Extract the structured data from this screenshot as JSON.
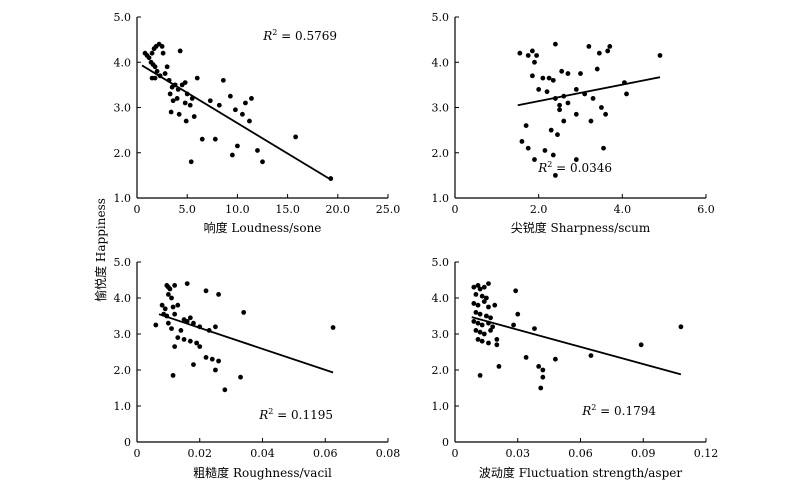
{
  "shared_ylabel": "愉悦度 Happiness",
  "chart_data": [
    {
      "type": "scatter",
      "xlabel": "响度 Loudness/sone",
      "xlim": [
        0,
        25
      ],
      "ylim": [
        1.0,
        5.0
      ],
      "xticks": [
        "0",
        "5.0",
        "10.0",
        "15.0",
        "20.0",
        "25.0"
      ],
      "xtick_values": [
        0,
        5,
        10,
        15,
        20,
        25
      ],
      "yticks": [
        "1.0",
        "2.0",
        "3.0",
        "4.0",
        "5.0"
      ],
      "ytick_values": [
        1,
        2,
        3,
        4,
        5
      ],
      "r2_symbol": "R",
      "r2_sup": "2",
      "r2_text": " = 0.5769",
      "r2_position": "top-right",
      "trendline": {
        "x": [
          0.5,
          19.2
        ],
        "y": [
          3.93,
          1.42
        ]
      },
      "points": [
        [
          0.8,
          4.2
        ],
        [
          1.0,
          4.15
        ],
        [
          1.2,
          4.1
        ],
        [
          1.5,
          4.2
        ],
        [
          1.7,
          4.3
        ],
        [
          1.9,
          4.35
        ],
        [
          2.2,
          4.4
        ],
        [
          2.5,
          4.35
        ],
        [
          2.6,
          4.2
        ],
        [
          1.4,
          4.0
        ],
        [
          1.6,
          3.95
        ],
        [
          1.8,
          3.9
        ],
        [
          2.0,
          3.8
        ],
        [
          1.5,
          3.65
        ],
        [
          1.8,
          3.65
        ],
        [
          2.3,
          3.7
        ],
        [
          2.8,
          3.75
        ],
        [
          3.0,
          3.9
        ],
        [
          3.2,
          3.6
        ],
        [
          3.5,
          3.45
        ],
        [
          3.8,
          3.5
        ],
        [
          4.1,
          3.4
        ],
        [
          4.5,
          3.5
        ],
        [
          4.8,
          3.55
        ],
        [
          3.3,
          3.3
        ],
        [
          3.6,
          3.15
        ],
        [
          4.0,
          3.2
        ],
        [
          4.3,
          4.25
        ],
        [
          5.0,
          3.3
        ],
        [
          5.5,
          3.2
        ],
        [
          6.0,
          3.65
        ],
        [
          4.8,
          3.1
        ],
        [
          5.3,
          3.05
        ],
        [
          3.4,
          2.9
        ],
        [
          4.2,
          2.85
        ],
        [
          4.9,
          2.7
        ],
        [
          5.7,
          2.8
        ],
        [
          5.4,
          1.8
        ],
        [
          6.5,
          2.3
        ],
        [
          7.3,
          3.15
        ],
        [
          8.2,
          3.05
        ],
        [
          8.6,
          3.6
        ],
        [
          9.3,
          3.25
        ],
        [
          9.8,
          2.95
        ],
        [
          10.5,
          2.85
        ],
        [
          10.8,
          3.1
        ],
        [
          11.4,
          3.2
        ],
        [
          11.2,
          2.7
        ],
        [
          7.8,
          2.3
        ],
        [
          9.5,
          1.95
        ],
        [
          10.0,
          2.15
        ],
        [
          12.0,
          2.05
        ],
        [
          12.5,
          1.8
        ],
        [
          15.8,
          2.35
        ],
        [
          19.3,
          1.43
        ]
      ]
    },
    {
      "type": "scatter",
      "xlabel": "尖锐度 Sharpness/scum",
      "xlim": [
        0,
        6
      ],
      "ylim": [
        1.0,
        5.0
      ],
      "xticks": [
        "0",
        "2.0",
        "4.0",
        "6.0"
      ],
      "xtick_values": [
        0,
        2,
        4,
        6
      ],
      "yticks": [
        "1.0",
        "2.0",
        "3.0",
        "4.0",
        "5.0"
      ],
      "ytick_values": [
        1,
        2,
        3,
        4,
        5
      ],
      "r2_symbol": "R",
      "r2_sup": "2",
      "r2_text": " = 0.0346",
      "r2_position": "bottom-right",
      "trendline": {
        "x": [
          1.5,
          4.9
        ],
        "y": [
          3.05,
          3.67
        ]
      },
      "points": [
        [
          1.55,
          4.2
        ],
        [
          1.75,
          4.15
        ],
        [
          1.85,
          4.25
        ],
        [
          1.95,
          4.15
        ],
        [
          1.9,
          4.0
        ],
        [
          2.4,
          4.4
        ],
        [
          3.2,
          4.35
        ],
        [
          3.45,
          4.2
        ],
        [
          3.65,
          4.25
        ],
        [
          3.7,
          4.35
        ],
        [
          4.9,
          4.15
        ],
        [
          1.85,
          3.7
        ],
        [
          2.1,
          3.65
        ],
        [
          2.25,
          3.65
        ],
        [
          2.35,
          3.6
        ],
        [
          2.55,
          3.8
        ],
        [
          2.7,
          3.75
        ],
        [
          3.0,
          3.75
        ],
        [
          3.4,
          3.85
        ],
        [
          4.05,
          3.55
        ],
        [
          4.1,
          3.3
        ],
        [
          2.0,
          3.4
        ],
        [
          2.2,
          3.35
        ],
        [
          2.4,
          3.2
        ],
        [
          2.6,
          3.25
        ],
        [
          2.9,
          3.4
        ],
        [
          3.1,
          3.3
        ],
        [
          3.3,
          3.2
        ],
        [
          3.5,
          3.0
        ],
        [
          3.6,
          2.85
        ],
        [
          2.5,
          3.05
        ],
        [
          2.5,
          2.95
        ],
        [
          2.6,
          2.7
        ],
        [
          2.7,
          3.1
        ],
        [
          2.9,
          2.85
        ],
        [
          3.25,
          2.7
        ],
        [
          2.3,
          2.5
        ],
        [
          2.45,
          2.4
        ],
        [
          1.6,
          2.25
        ],
        [
          1.75,
          2.1
        ],
        [
          2.15,
          2.05
        ],
        [
          2.35,
          1.95
        ],
        [
          1.9,
          1.85
        ],
        [
          2.9,
          1.85
        ],
        [
          3.55,
          2.1
        ],
        [
          2.4,
          1.5
        ],
        [
          1.7,
          2.6
        ]
      ]
    },
    {
      "type": "scatter",
      "xlabel": "粗糙度 Roughness/vacil",
      "xlim": [
        0,
        0.08
      ],
      "ylim": [
        0,
        5.0
      ],
      "xticks": [
        "0",
        "0.02",
        "0.04",
        "0.06",
        "0.08"
      ],
      "xtick_values": [
        0,
        0.02,
        0.04,
        0.06,
        0.08
      ],
      "yticks": [
        "0",
        "1.0",
        "2.0",
        "3.0",
        "4.0",
        "5.0"
      ],
      "ytick_values": [
        0,
        1,
        2,
        3,
        4,
        5
      ],
      "r2_symbol": "R",
      "r2_sup": "2",
      "r2_text": " = 0.1195",
      "r2_position": "bottom-right",
      "trendline": {
        "x": [
          0.007,
          0.0625
        ],
        "y": [
          3.55,
          1.93
        ]
      },
      "points": [
        [
          0.0095,
          4.35
        ],
        [
          0.01,
          4.3
        ],
        [
          0.0105,
          4.25
        ],
        [
          0.01,
          4.1
        ],
        [
          0.011,
          4.0
        ],
        [
          0.012,
          4.35
        ],
        [
          0.016,
          4.4
        ],
        [
          0.022,
          4.2
        ],
        [
          0.026,
          4.1
        ],
        [
          0.008,
          3.8
        ],
        [
          0.009,
          3.7
        ],
        [
          0.0115,
          3.75
        ],
        [
          0.013,
          3.8
        ],
        [
          0.0085,
          3.55
        ],
        [
          0.0095,
          3.5
        ],
        [
          0.012,
          3.55
        ],
        [
          0.015,
          3.4
        ],
        [
          0.017,
          3.45
        ],
        [
          0.006,
          3.25
        ],
        [
          0.01,
          3.3
        ],
        [
          0.011,
          3.15
        ],
        [
          0.014,
          3.1
        ],
        [
          0.016,
          3.35
        ],
        [
          0.018,
          3.3
        ],
        [
          0.02,
          3.2
        ],
        [
          0.023,
          3.1
        ],
        [
          0.025,
          3.2
        ],
        [
          0.034,
          3.6
        ],
        [
          0.013,
          2.9
        ],
        [
          0.015,
          2.85
        ],
        [
          0.017,
          2.8
        ],
        [
          0.019,
          2.75
        ],
        [
          0.012,
          2.65
        ],
        [
          0.02,
          2.65
        ],
        [
          0.022,
          2.35
        ],
        [
          0.024,
          2.3
        ],
        [
          0.026,
          2.25
        ],
        [
          0.018,
          2.15
        ],
        [
          0.025,
          2.0
        ],
        [
          0.0115,
          1.85
        ],
        [
          0.028,
          1.45
        ],
        [
          0.033,
          1.8
        ],
        [
          0.0625,
          3.18
        ]
      ]
    },
    {
      "type": "scatter",
      "xlabel": "波动度 Fluctuation strength/asper",
      "xlim": [
        0,
        0.12
      ],
      "ylim": [
        0,
        5.0
      ],
      "xticks": [
        "0",
        "0.03",
        "0.06",
        "0.09",
        "0.12"
      ],
      "xtick_values": [
        0,
        0.03,
        0.06,
        0.09,
        0.12
      ],
      "yticks": [
        "0",
        "1.0",
        "2.0",
        "3.0",
        "4.0",
        "5.0"
      ],
      "ytick_values": [
        0,
        1,
        2,
        3,
        4,
        5
      ],
      "r2_symbol": "R",
      "r2_sup": "2",
      "r2_text": " = 0.1794",
      "r2_position": "bottom-right",
      "trendline": {
        "x": [
          0.008,
          0.108
        ],
        "y": [
          3.47,
          1.88
        ]
      },
      "points": [
        [
          0.009,
          4.3
        ],
        [
          0.011,
          4.35
        ],
        [
          0.012,
          4.25
        ],
        [
          0.014,
          4.3
        ],
        [
          0.016,
          4.4
        ],
        [
          0.01,
          4.1
        ],
        [
          0.013,
          4.05
        ],
        [
          0.015,
          4.0
        ],
        [
          0.009,
          3.85
        ],
        [
          0.011,
          3.8
        ],
        [
          0.014,
          3.9
        ],
        [
          0.016,
          3.75
        ],
        [
          0.019,
          3.8
        ],
        [
          0.01,
          3.6
        ],
        [
          0.012,
          3.55
        ],
        [
          0.015,
          3.5
        ],
        [
          0.017,
          3.45
        ],
        [
          0.009,
          3.35
        ],
        [
          0.011,
          3.3
        ],
        [
          0.013,
          3.25
        ],
        [
          0.016,
          3.3
        ],
        [
          0.018,
          3.2
        ],
        [
          0.01,
          3.1
        ],
        [
          0.012,
          3.05
        ],
        [
          0.014,
          3.0
        ],
        [
          0.017,
          3.1
        ],
        [
          0.011,
          2.85
        ],
        [
          0.013,
          2.8
        ],
        [
          0.016,
          2.75
        ],
        [
          0.02,
          2.85
        ],
        [
          0.028,
          3.25
        ],
        [
          0.03,
          3.55
        ],
        [
          0.029,
          4.2
        ],
        [
          0.038,
          3.15
        ],
        [
          0.02,
          2.7
        ],
        [
          0.034,
          2.35
        ],
        [
          0.04,
          2.1
        ],
        [
          0.042,
          2.0
        ],
        [
          0.048,
          2.3
        ],
        [
          0.042,
          1.8
        ],
        [
          0.041,
          1.5
        ],
        [
          0.012,
          1.85
        ],
        [
          0.021,
          2.1
        ],
        [
          0.065,
          2.4
        ],
        [
          0.089,
          2.7
        ],
        [
          0.108,
          3.2
        ]
      ]
    }
  ]
}
